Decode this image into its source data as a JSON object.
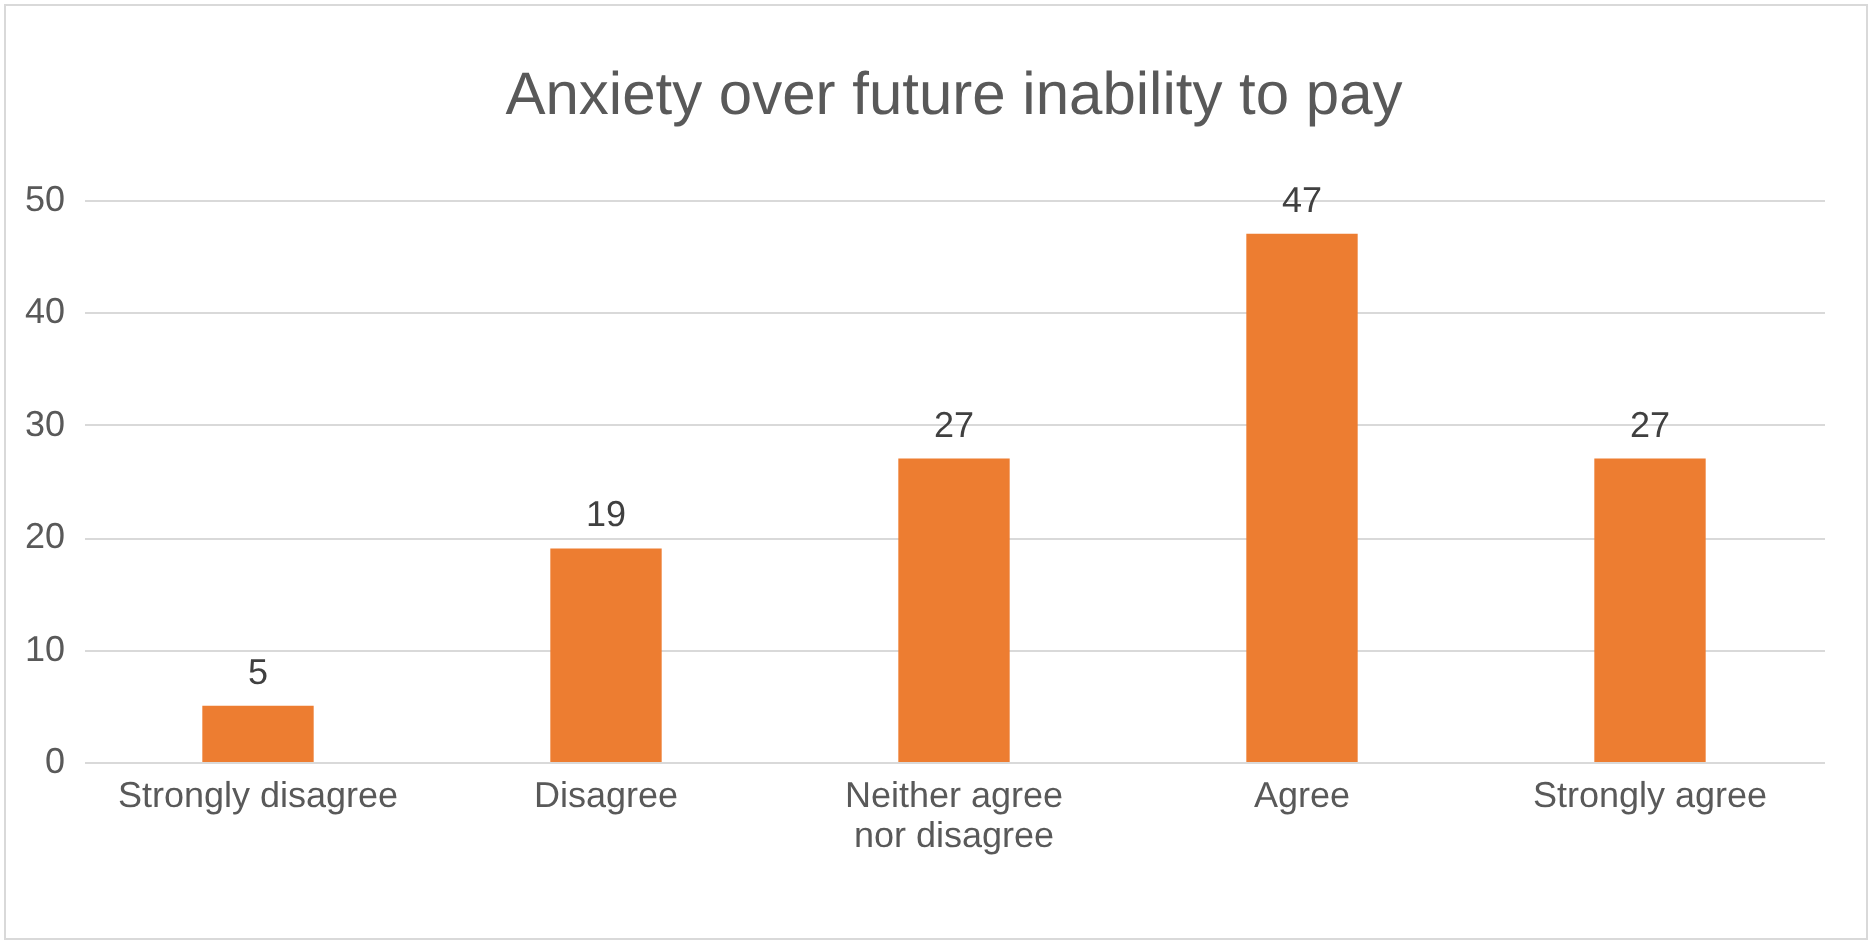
{
  "chart_data": {
    "type": "bar",
    "title": "Anxiety over future inability to pay",
    "categories": [
      "Strongly disagree",
      "Disagree",
      "Neither agree nor disagree",
      "Agree",
      "Strongly agree"
    ],
    "values": [
      5,
      19,
      27,
      47,
      27
    ],
    "color": "#ed7d31",
    "ylim": [
      0,
      50
    ],
    "yticks": [
      0,
      10,
      20,
      30,
      40,
      50
    ],
    "grid": "y",
    "data_labels": true
  }
}
